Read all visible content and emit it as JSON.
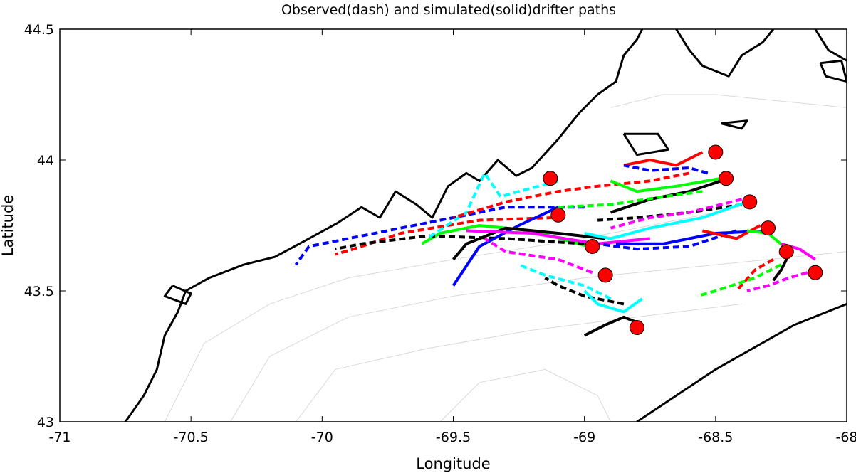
{
  "chart_data": {
    "type": "line",
    "title": "Observed(dash) and simulated(solid)drifter paths",
    "xlabel": "Longitude",
    "ylabel": "Latitude",
    "xlim": [
      -71,
      -68
    ],
    "ylim": [
      43,
      44.5
    ],
    "x_ticks": [
      -71,
      -70.5,
      -70,
      -69.5,
      -69,
      -68.5,
      -68
    ],
    "x_tick_labels": [
      "-71",
      "-70.5",
      "-70",
      "-69.5",
      "-69",
      "-68.5",
      "-68"
    ],
    "y_ticks": [
      43,
      43.5,
      44,
      44.5
    ],
    "y_tick_labels": [
      "43",
      "43.5",
      "44",
      "44.5"
    ],
    "grid": false,
    "legend": "none",
    "colors": {
      "coast": "#000000",
      "bathymetry": "#d9d9d9",
      "start_marker": "#ff0000"
    },
    "coastline": [
      [
        [
          -70.75,
          43.0
        ],
        [
          -70.68,
          43.1
        ],
        [
          -70.63,
          43.2
        ],
        [
          -70.6,
          43.33
        ],
        [
          -70.55,
          43.42
        ],
        [
          -70.52,
          43.5
        ],
        [
          -70.43,
          43.55
        ],
        [
          -70.3,
          43.6
        ],
        [
          -70.18,
          43.63
        ],
        [
          -70.05,
          43.7
        ],
        [
          -69.94,
          43.76
        ],
        [
          -69.85,
          43.82
        ],
        [
          -69.78,
          43.78
        ],
        [
          -69.72,
          43.88
        ],
        [
          -69.64,
          43.83
        ],
        [
          -69.58,
          43.78
        ],
        [
          -69.52,
          43.9
        ],
        [
          -69.45,
          43.95
        ],
        [
          -69.4,
          43.92
        ],
        [
          -69.33,
          44.0
        ],
        [
          -69.26,
          43.94
        ],
        [
          -69.2,
          43.97
        ],
        [
          -69.1,
          44.08
        ],
        [
          -69.02,
          44.18
        ],
        [
          -68.95,
          44.25
        ],
        [
          -68.88,
          44.3
        ],
        [
          -68.85,
          44.4
        ],
        [
          -68.8,
          44.46
        ],
        [
          -68.78,
          44.5
        ]
      ],
      [
        [
          -68.65,
          44.5
        ],
        [
          -68.6,
          44.42
        ],
        [
          -68.55,
          44.36
        ],
        [
          -68.45,
          44.32
        ],
        [
          -68.4,
          44.4
        ],
        [
          -68.32,
          44.45
        ],
        [
          -68.28,
          44.5
        ]
      ],
      [
        [
          -68.12,
          44.5
        ],
        [
          -68.07,
          44.42
        ],
        [
          -68.0,
          44.38
        ]
      ]
    ],
    "islands": [
      [
        [
          -68.85,
          44.1
        ],
        [
          -68.8,
          44.02
        ],
        [
          -68.68,
          44.04
        ],
        [
          -68.72,
          44.1
        ],
        [
          -68.85,
          44.1
        ]
      ],
      [
        [
          -68.48,
          44.14
        ],
        [
          -68.38,
          44.15
        ],
        [
          -68.4,
          44.12
        ],
        [
          -68.48,
          44.14
        ]
      ],
      [
        [
          -68.1,
          44.37
        ],
        [
          -68.02,
          44.38
        ],
        [
          -68.0,
          44.3
        ],
        [
          -68.08,
          44.32
        ],
        [
          -68.1,
          44.37
        ]
      ],
      [
        [
          -70.57,
          43.52
        ],
        [
          -70.5,
          43.49
        ],
        [
          -70.52,
          43.45
        ],
        [
          -70.6,
          43.48
        ],
        [
          -70.57,
          43.52
        ]
      ]
    ],
    "shelf_edge": [
      [
        -68.8,
        43.0
      ],
      [
        -68.5,
        43.2
      ],
      [
        -68.2,
        43.37
      ],
      [
        -68.0,
        43.45
      ]
    ],
    "bathymetry_contours": [
      [
        [
          -70.6,
          43.0
        ],
        [
          -70.45,
          43.3
        ],
        [
          -70.2,
          43.45
        ],
        [
          -69.9,
          43.55
        ],
        [
          -69.5,
          43.62
        ],
        [
          -69.0,
          43.7
        ],
        [
          -68.5,
          43.8
        ]
      ],
      [
        [
          -70.35,
          43.0
        ],
        [
          -70.2,
          43.25
        ],
        [
          -69.9,
          43.4
        ],
        [
          -69.5,
          43.48
        ],
        [
          -69.0,
          43.55
        ],
        [
          -68.5,
          43.6
        ],
        [
          -68.0,
          43.65
        ]
      ],
      [
        [
          -70.1,
          43.0
        ],
        [
          -69.95,
          43.2
        ],
        [
          -69.6,
          43.28
        ],
        [
          -69.2,
          43.35
        ],
        [
          -68.8,
          43.4
        ],
        [
          -68.4,
          43.45
        ]
      ],
      [
        [
          -69.55,
          43.0
        ],
        [
          -69.4,
          43.15
        ],
        [
          -69.15,
          43.2
        ],
        [
          -68.95,
          43.1
        ],
        [
          -68.9,
          43.0
        ]
      ],
      [
        [
          -68.9,
          44.2
        ],
        [
          -68.7,
          44.25
        ],
        [
          -68.5,
          44.25
        ],
        [
          -68.2,
          44.22
        ],
        [
          -68.0,
          44.2
        ]
      ]
    ],
    "series": [
      {
        "color": "#0000ff",
        "style": "dash",
        "x": [
          -69.0,
          -69.3,
          -69.6,
          -69.9,
          -70.05,
          -70.1
        ],
        "y": [
          43.82,
          43.82,
          43.76,
          43.7,
          43.67,
          43.6
        ]
      },
      {
        "color": "#ff0000",
        "style": "dash",
        "x": [
          -69.12,
          -69.4,
          -69.7,
          -69.88,
          -69.95
        ],
        "y": [
          43.78,
          43.77,
          43.72,
          43.66,
          43.64
        ]
      },
      {
        "color": "#00ff00",
        "style": "solid",
        "x": [
          -68.95,
          -69.2,
          -69.4,
          -69.55,
          -69.62
        ],
        "y": [
          43.66,
          43.73,
          43.75,
          43.72,
          43.68
        ]
      },
      {
        "color": "#000000",
        "style": "dash",
        "x": [
          -69.0,
          -69.3,
          -69.6,
          -69.85,
          -69.95
        ],
        "y": [
          43.68,
          43.7,
          43.71,
          43.68,
          43.66
        ]
      },
      {
        "color": "#00ffff",
        "style": "dash",
        "x": [
          -69.1,
          -69.25,
          -69.32,
          -69.38,
          -69.45,
          -69.6
        ],
        "y": [
          43.92,
          43.88,
          43.86,
          43.95,
          43.8,
          43.7
        ]
      },
      {
        "color": "#ff0000",
        "style": "dash",
        "x": [
          -68.6,
          -68.75,
          -68.95,
          -69.1,
          -69.3,
          -69.5
        ],
        "y": [
          43.95,
          43.92,
          43.9,
          43.88,
          43.84,
          43.78
        ]
      },
      {
        "color": "#0000ff",
        "style": "solid",
        "x": [
          -69.1,
          -69.25,
          -69.4,
          -69.5
        ],
        "y": [
          43.82,
          43.75,
          43.67,
          43.52
        ]
      },
      {
        "color": "#000000",
        "style": "solid",
        "x": [
          -68.92,
          -69.1,
          -69.3,
          -69.45,
          -69.5
        ],
        "y": [
          43.7,
          43.72,
          43.74,
          43.68,
          43.62
        ]
      },
      {
        "color": "#ff00ff",
        "style": "solid",
        "x": [
          -68.75,
          -68.95,
          -69.2,
          -69.45
        ],
        "y": [
          43.7,
          43.68,
          43.72,
          43.73
        ]
      },
      {
        "color": "#ff00ff",
        "style": "dash",
        "x": [
          -68.97,
          -69.1,
          -69.3,
          -69.38
        ],
        "y": [
          43.57,
          43.62,
          43.65,
          43.7
        ]
      },
      {
        "color": "#00ffff",
        "style": "dash",
        "x": [
          -68.9,
          -69.0,
          -69.15,
          -69.25
        ],
        "y": [
          43.47,
          43.52,
          43.56,
          43.6
        ]
      },
      {
        "color": "#000000",
        "style": "dash",
        "x": [
          -68.85,
          -69.0,
          -69.1,
          -69.15
        ],
        "y": [
          43.45,
          43.48,
          43.52,
          43.55
        ]
      },
      {
        "color": "#00ffff",
        "style": "solid",
        "x": [
          -68.78,
          -68.85,
          -68.95,
          -69.0
        ],
        "y": [
          43.47,
          43.42,
          43.45,
          43.5
        ]
      },
      {
        "color": "#000000",
        "style": "solid",
        "x": [
          -68.8,
          -68.85,
          -68.92,
          -69.0
        ],
        "y": [
          43.38,
          43.4,
          43.37,
          43.33
        ]
      },
      {
        "color": "#ff0000",
        "style": "solid",
        "x": [
          -68.55,
          -68.65,
          -68.75,
          -68.85
        ],
        "y": [
          44.03,
          43.98,
          44.0,
          43.98
        ]
      },
      {
        "color": "#0000ff",
        "style": "dash",
        "x": [
          -68.53,
          -68.6,
          -68.75,
          -68.85
        ],
        "y": [
          43.95,
          43.97,
          43.96,
          43.98
        ]
      },
      {
        "color": "#00ff00",
        "style": "solid",
        "x": [
          -68.48,
          -68.65,
          -68.8,
          -68.9
        ],
        "y": [
          43.93,
          43.9,
          43.88,
          43.92
        ]
      },
      {
        "color": "#000000",
        "style": "solid",
        "x": [
          -68.48,
          -68.6,
          -68.75,
          -68.9
        ],
        "y": [
          43.92,
          43.88,
          43.85,
          43.8
        ]
      },
      {
        "color": "#00ff00",
        "style": "dash",
        "x": [
          -68.55,
          -68.7,
          -68.9,
          -69.1
        ],
        "y": [
          43.88,
          43.86,
          43.83,
          43.82
        ]
      },
      {
        "color": "#000000",
        "style": "dash",
        "x": [
          -68.4,
          -68.6,
          -68.8,
          -68.95
        ],
        "y": [
          43.83,
          43.8,
          43.78,
          43.77
        ]
      },
      {
        "color": "#ff00ff",
        "style": "dash",
        "x": [
          -68.4,
          -68.6,
          -68.75,
          -68.9
        ],
        "y": [
          43.85,
          43.8,
          43.78,
          43.74
        ]
      },
      {
        "color": "#00ffff",
        "style": "solid",
        "x": [
          -68.38,
          -68.55,
          -68.75,
          -68.9,
          -69.0
        ],
        "y": [
          43.84,
          43.78,
          43.74,
          43.7,
          43.72
        ]
      },
      {
        "color": "#0000ff",
        "style": "solid",
        "x": [
          -68.3,
          -68.5,
          -68.7,
          -68.88
        ],
        "y": [
          43.73,
          43.72,
          43.68,
          43.68
        ]
      },
      {
        "color": "#0000ff",
        "style": "dash",
        "x": [
          -68.42,
          -68.6,
          -68.8,
          -68.95
        ],
        "y": [
          43.73,
          43.67,
          43.66,
          43.68
        ]
      },
      {
        "color": "#ff0000",
        "style": "solid",
        "x": [
          -68.33,
          -68.42,
          -68.55
        ],
        "y": [
          43.75,
          43.7,
          43.73
        ]
      },
      {
        "color": "#00ff00",
        "style": "solid",
        "x": [
          -68.24,
          -68.3,
          -68.38
        ],
        "y": [
          43.67,
          43.72,
          43.73
        ]
      },
      {
        "color": "#ff0000",
        "style": "dash",
        "x": [
          -68.28,
          -68.35,
          -68.42
        ],
        "y": [
          43.62,
          43.58,
          43.5
        ]
      },
      {
        "color": "#00ff00",
        "style": "dash",
        "x": [
          -68.25,
          -68.35,
          -68.5,
          -68.57
        ],
        "y": [
          43.6,
          43.55,
          43.5,
          43.48
        ]
      },
      {
        "color": "#000000",
        "style": "solid",
        "x": [
          -68.22,
          -68.25,
          -68.28
        ],
        "y": [
          43.64,
          43.58,
          43.54
        ]
      },
      {
        "color": "#ff00ff",
        "style": "solid",
        "x": [
          -68.12,
          -68.18,
          -68.25
        ],
        "y": [
          43.62,
          43.66,
          43.68
        ]
      },
      {
        "color": "#ff00ff",
        "style": "dash",
        "x": [
          -68.15,
          -68.22,
          -68.3,
          -68.38
        ],
        "y": [
          43.57,
          43.55,
          43.52,
          43.5
        ]
      }
    ],
    "start_points": [
      {
        "x": -69.13,
        "y": 43.93
      },
      {
        "x": -69.1,
        "y": 43.79
      },
      {
        "x": -68.97,
        "y": 43.67
      },
      {
        "x": -68.92,
        "y": 43.56
      },
      {
        "x": -68.8,
        "y": 43.36
      },
      {
        "x": -68.5,
        "y": 44.03
      },
      {
        "x": -68.46,
        "y": 43.93
      },
      {
        "x": -68.37,
        "y": 43.84
      },
      {
        "x": -68.3,
        "y": 43.74
      },
      {
        "x": -68.23,
        "y": 43.65
      },
      {
        "x": -68.12,
        "y": 43.57
      }
    ]
  }
}
